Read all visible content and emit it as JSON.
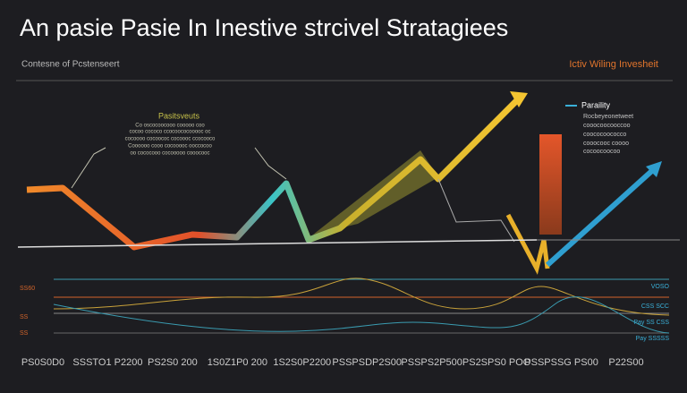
{
  "header": {
    "title": "An pasie Pasie In Inestive strcivel Stratagiees",
    "subtitle": "Contesne of Pcstenseert",
    "corner_label": "Ictiv Wiling Invesheit"
  },
  "annotation": {
    "title": "Pasitsveuts",
    "lines": [
      "Co oscocoocooo cooooo coo",
      "cocoo cococo ccocoococooooc oc",
      "cocoooo cocoococ cocoooc ccocooco",
      "Coooooo cooo cocooooc ooccocoo",
      "oo cococooo cocooooo cooocooc"
    ]
  },
  "legend": {
    "title": "Paraility",
    "lines": [
      "Rocbeyeonetweet",
      "cooocoocooccoo",
      "coococoococco",
      "cooocooc coooo",
      "cocoocoocoo"
    ]
  },
  "left_labels": [
    "SS60",
    "SS",
    "SS"
  ],
  "right_labels": [
    "VOSO",
    "CSS SCC",
    "Pay SS CSS",
    "Pay SSSSS"
  ],
  "x_labels": [
    "PS0S0D0",
    "SSSTO1 P2200",
    "PS2S0 200",
    "1S0Z1P0 200",
    "1S2S0P2200",
    "PSSPSDP2S00",
    "PSSPS2P500",
    "PS2SPS0 POO",
    "PSSPSSG PS00",
    "P22S00"
  ]
}
